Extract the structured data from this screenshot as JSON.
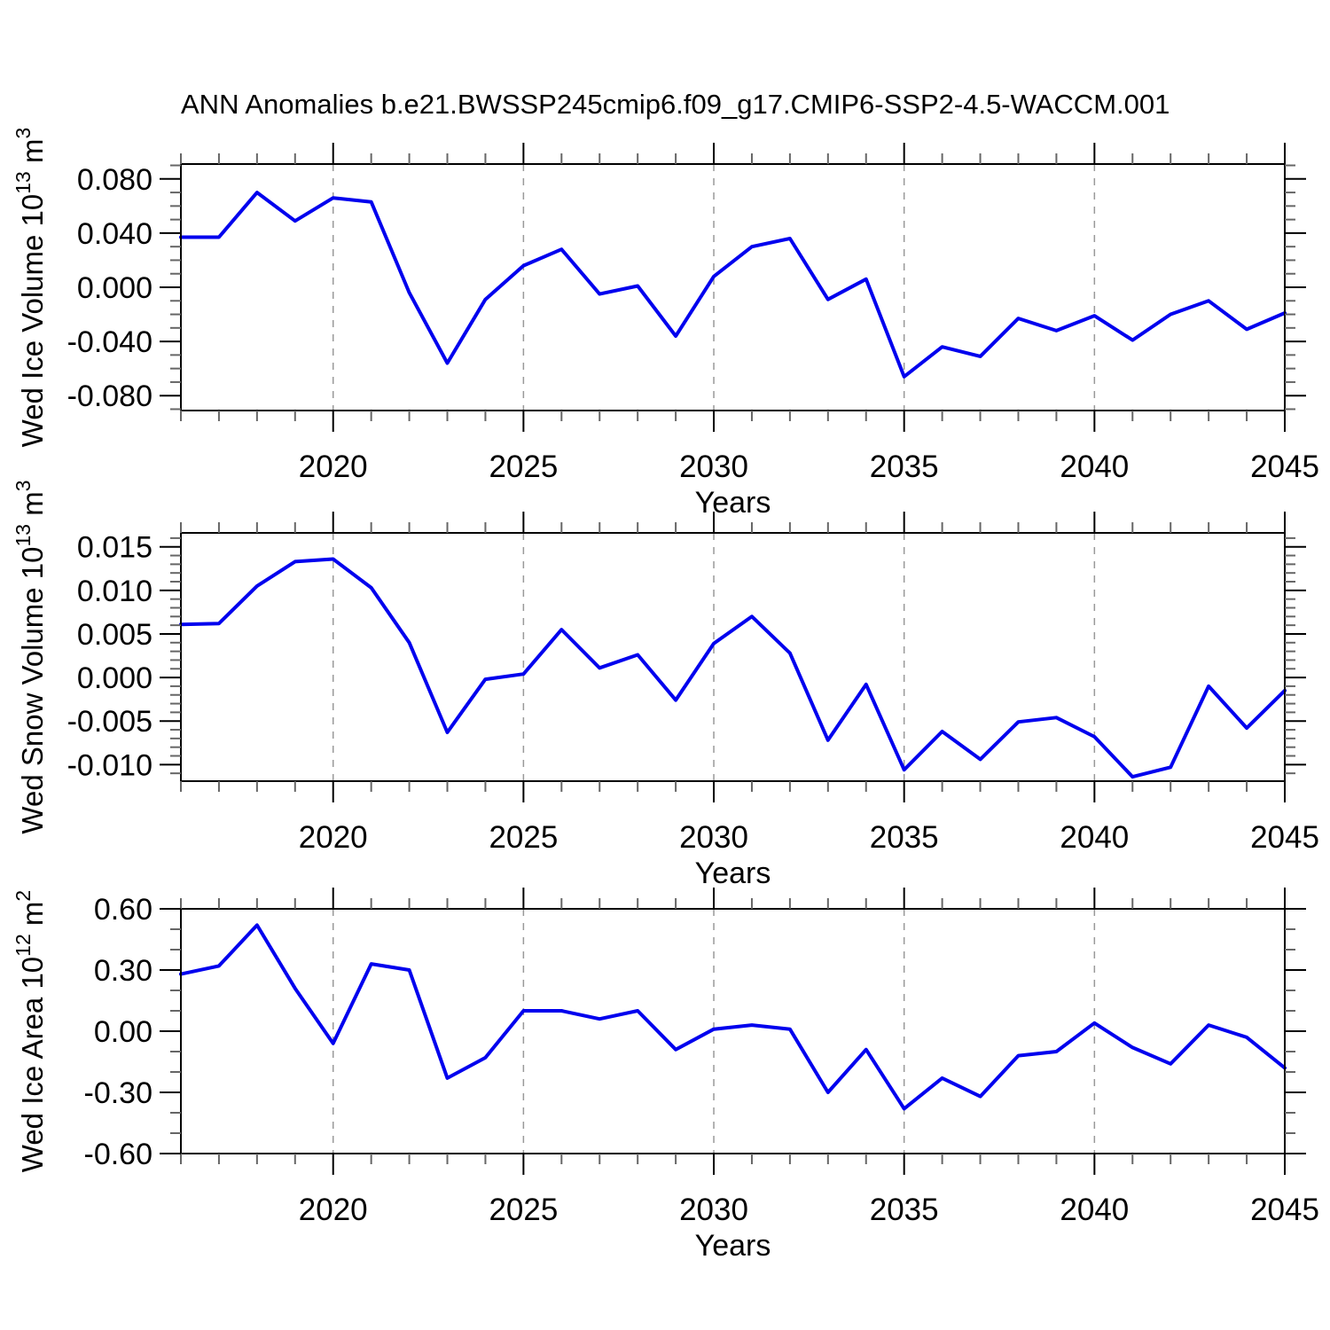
{
  "title": "ANN Anomalies b.e21.BWSSP245cmip6.f09_g17.CMIP6-SSP2-4.5-WACCM.001",
  "colors": {
    "line": "#0000ee",
    "axis": "#000000",
    "minor_tick": "#666666",
    "grid": "#999999",
    "text": "#000000"
  },
  "chart_data": {
    "type": "line",
    "title": "ANN Anomalies b.e21.BWSSP245cmip6.f09_g17.CMIP6-SSP2-4.5-WACCM.001",
    "xlabel": "Years",
    "x": [
      2016,
      2017,
      2018,
      2019,
      2020,
      2021,
      2022,
      2023,
      2024,
      2025,
      2026,
      2027,
      2028,
      2029,
      2030,
      2031,
      2032,
      2033,
      2034,
      2035,
      2036,
      2037,
      2038,
      2039,
      2040,
      2041,
      2042,
      2043,
      2044,
      2045
    ],
    "xlim": [
      2016,
      2045
    ],
    "x_major_ticks": [
      2020,
      2025,
      2030,
      2035,
      2040,
      2045
    ],
    "x_major_tick_labels": [
      "2020",
      "2025",
      "2030",
      "2035",
      "2040",
      "2045"
    ],
    "x_minor_step": 1,
    "x_gridline_years": [
      2020,
      2025,
      2030,
      2035,
      2040
    ],
    "grid_style": "vertical-dashed",
    "legend": "none",
    "panels": [
      {
        "name": "wed-ice-volume",
        "ylabel_text": "Wed Ice Volume 10¹³ m³",
        "ylabel_parts": [
          [
            "Wed Ice Volume 10",
            false
          ],
          [
            "13",
            true
          ],
          [
            " m",
            false
          ],
          [
            "3",
            true
          ]
        ],
        "ylim": [
          -0.091,
          0.091
        ],
        "y_major_values": [
          0.08,
          0.04,
          0.0,
          -0.04,
          -0.08
        ],
        "y_major_labels": [
          "0.080",
          "0.040",
          "0.000",
          "-0.040",
          "-0.080"
        ],
        "y_minor_step": 0.01,
        "values": [
          0.037,
          0.037,
          0.07,
          0.049,
          0.066,
          0.063,
          -0.004,
          -0.056,
          -0.009,
          0.016,
          0.028,
          -0.005,
          0.001,
          -0.036,
          0.008,
          0.03,
          0.036,
          -0.009,
          0.006,
          -0.066,
          -0.044,
          -0.051,
          -0.023,
          -0.032,
          -0.021,
          -0.039,
          -0.02,
          -0.01,
          -0.031,
          -0.019
        ]
      },
      {
        "name": "wed-snow-volume",
        "ylabel_text": "Wed Snow Volume 10¹³ m³",
        "ylabel_parts": [
          [
            "Wed Snow Volume 10",
            false
          ],
          [
            "13",
            true
          ],
          [
            " m",
            false
          ],
          [
            "3",
            true
          ]
        ],
        "ylim": [
          -0.0119,
          0.0166
        ],
        "y_major_values": [
          0.015,
          0.01,
          0.005,
          0.0,
          -0.005,
          -0.01
        ],
        "y_major_labels": [
          "0.015",
          "0.010",
          "0.005",
          "0.000",
          "-0.005",
          "-0.010"
        ],
        "y_minor_step": 0.001,
        "values": [
          0.0061,
          0.0062,
          0.0105,
          0.0133,
          0.0136,
          0.0103,
          0.004,
          -0.0063,
          -0.0002,
          0.0004,
          0.0055,
          0.0011,
          0.0026,
          -0.0026,
          0.0039,
          0.007,
          0.0028,
          -0.0072,
          -0.0008,
          -0.0106,
          -0.0062,
          -0.0094,
          -0.0051,
          -0.0046,
          -0.0068,
          -0.0114,
          -0.0103,
          -0.001,
          -0.0058,
          -0.0015
        ]
      },
      {
        "name": "wed-ice-area",
        "ylabel_text": "Wed Ice Area 10¹² m²",
        "ylabel_parts": [
          [
            "Wed Ice Area 10",
            false
          ],
          [
            "12",
            true
          ],
          [
            " m",
            false
          ],
          [
            "2",
            true
          ]
        ],
        "ylim": [
          -0.6,
          0.6
        ],
        "y_major_values": [
          0.6,
          0.3,
          0.0,
          -0.3,
          -0.6
        ],
        "y_major_labels": [
          "0.60",
          "0.30",
          "0.00",
          "-0.30",
          "-0.60"
        ],
        "y_minor_step": 0.1,
        "values": [
          0.28,
          0.32,
          0.52,
          0.21,
          -0.06,
          0.33,
          0.3,
          -0.23,
          -0.13,
          0.1,
          0.1,
          0.06,
          0.1,
          -0.09,
          0.01,
          0.03,
          0.01,
          -0.3,
          -0.09,
          -0.38,
          -0.23,
          -0.32,
          -0.12,
          -0.1,
          0.04,
          -0.08,
          -0.16,
          0.03,
          -0.03,
          -0.18
        ]
      }
    ]
  }
}
